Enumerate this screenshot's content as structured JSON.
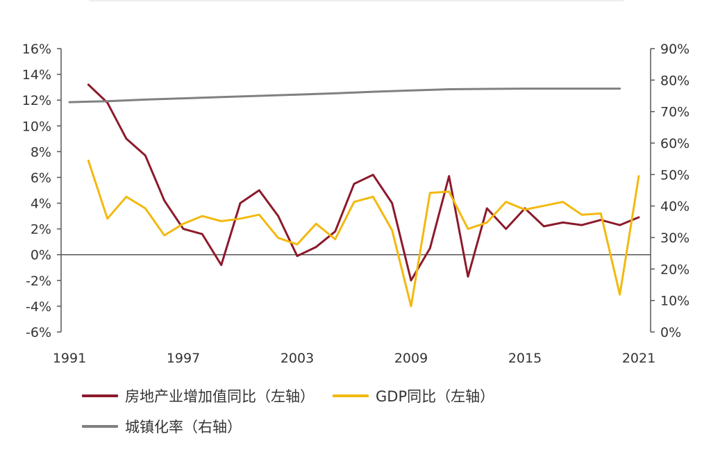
{
  "chart_data": {
    "type": "line",
    "x": [
      1992,
      1993,
      1994,
      1995,
      1996,
      1997,
      1998,
      1999,
      2000,
      2001,
      2002,
      2003,
      2004,
      2005,
      2006,
      2007,
      2008,
      2009,
      2010,
      2011,
      2012,
      2013,
      2014,
      2015,
      2016,
      2017,
      2018,
      2019,
      2020,
      2021
    ],
    "x_ticks": [
      "1991",
      "1997",
      "2003",
      "2009",
      "2015",
      "2021"
    ],
    "x_tick_values": [
      1991,
      1997,
      2003,
      2009,
      2015,
      2021
    ],
    "xlim": [
      1991,
      2021
    ],
    "y_left_ticks": [
      "16%",
      "14%",
      "12%",
      "10%",
      "8%",
      "6%",
      "4%",
      "2%",
      "0%",
      "-2%",
      "-4%",
      "-6%"
    ],
    "y_left_tick_values": [
      16,
      14,
      12,
      10,
      8,
      6,
      4,
      2,
      0,
      -2,
      -4,
      -6
    ],
    "ylim_left": [
      -6,
      16
    ],
    "y_right_ticks": [
      "90%",
      "80%",
      "70%",
      "60%",
      "50%",
      "40%",
      "30%",
      "20%",
      "10%",
      "0%"
    ],
    "y_right_tick_values": [
      90,
      80,
      70,
      60,
      50,
      40,
      30,
      20,
      10,
      0
    ],
    "ylim_right": [
      0,
      90
    ],
    "series": [
      {
        "name": "房地产业增加值同比（左轴）",
        "axis": "left",
        "color": "#8b1a2b",
        "x": [
          1992,
          1993,
          1994,
          1995,
          1996,
          1997,
          1998,
          1999,
          2000,
          2001,
          2002,
          2003,
          2004,
          2005,
          2006,
          2007,
          2008,
          2009,
          2010,
          2011,
          2012,
          2013,
          2014,
          2015,
          2016,
          2017,
          2018,
          2019,
          2020,
          2021
        ],
        "values": [
          13.2,
          11.8,
          9.0,
          7.7,
          4.2,
          2.0,
          1.6,
          -0.8,
          4.0,
          5.0,
          3.0,
          -0.1,
          0.6,
          1.8,
          5.5,
          6.2,
          4.0,
          -2.0,
          0.5,
          6.1,
          -1.7,
          3.6,
          2.0,
          3.6,
          2.2,
          2.5,
          2.3,
          2.7,
          2.3,
          2.9
        ]
      },
      {
        "name": "GDP同比（左轴）",
        "axis": "left",
        "color": "#f2b90f",
        "x": [
          1992,
          1993,
          1994,
          1995,
          1996,
          1997,
          1998,
          1999,
          2000,
          2001,
          2002,
          2003,
          2004,
          2005,
          2006,
          2007,
          2008,
          2009,
          2010,
          2011,
          2012,
          2013,
          2014,
          2015,
          2016,
          2017,
          2018,
          2019,
          2020,
          2021
        ],
        "values": [
          7.3,
          2.8,
          4.5,
          3.6,
          1.5,
          2.4,
          3.0,
          2.6,
          2.8,
          3.1,
          1.3,
          0.8,
          2.4,
          1.2,
          4.1,
          4.5,
          1.9,
          -4.0,
          4.8,
          4.9,
          2.0,
          2.5,
          4.1,
          3.5,
          3.8,
          4.1,
          3.1,
          3.2,
          -3.1,
          6.1
        ]
      },
      {
        "name": "城镇化率（右轴）",
        "axis": "right",
        "color": "#808080",
        "x": [
          1991,
          1993,
          1995,
          1997,
          1999,
          2001,
          2003,
          2005,
          2007,
          2009,
          2011,
          2013,
          2015,
          2017,
          2019,
          2020
        ],
        "values": [
          73.0,
          73.3,
          73.8,
          74.2,
          74.6,
          75.0,
          75.4,
          75.8,
          76.3,
          76.7,
          77.1,
          77.2,
          77.3,
          77.3,
          77.3,
          77.3
        ]
      }
    ],
    "grid": false,
    "zero_line": true,
    "legend_position": "bottom"
  },
  "legend": {
    "row1": [
      {
        "label": "房地产业增加值同比（左轴）",
        "color": "#8b1a2b"
      },
      {
        "label": "GDP同比（左轴）",
        "color": "#f2b90f"
      }
    ],
    "row2": [
      {
        "label": "城镇化率（右轴）",
        "color": "#808080"
      }
    ]
  }
}
